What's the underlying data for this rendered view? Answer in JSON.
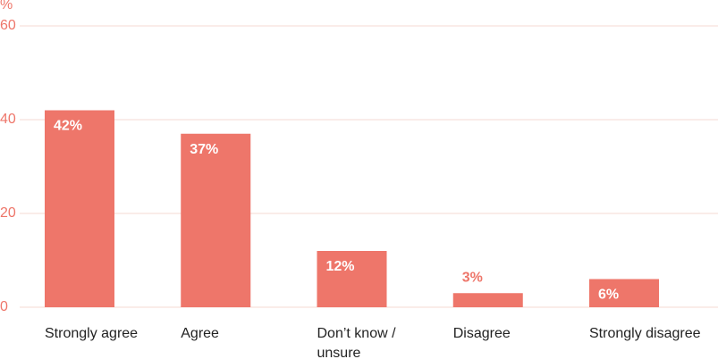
{
  "chart_data": {
    "type": "bar",
    "y_unit": "%",
    "categories": [
      "Strongly agree",
      "Agree",
      "Don’t know / unsure",
      "Disagree",
      "Strongly disagree"
    ],
    "values": [
      42,
      37,
      12,
      3,
      6
    ],
    "value_labels": [
      "42%",
      "37%",
      "12%",
      "3%",
      "6%"
    ],
    "color": "#ee766a",
    "ylim": [
      0,
      60
    ],
    "yticks": [
      0,
      20,
      40,
      60
    ],
    "grid": true
  }
}
